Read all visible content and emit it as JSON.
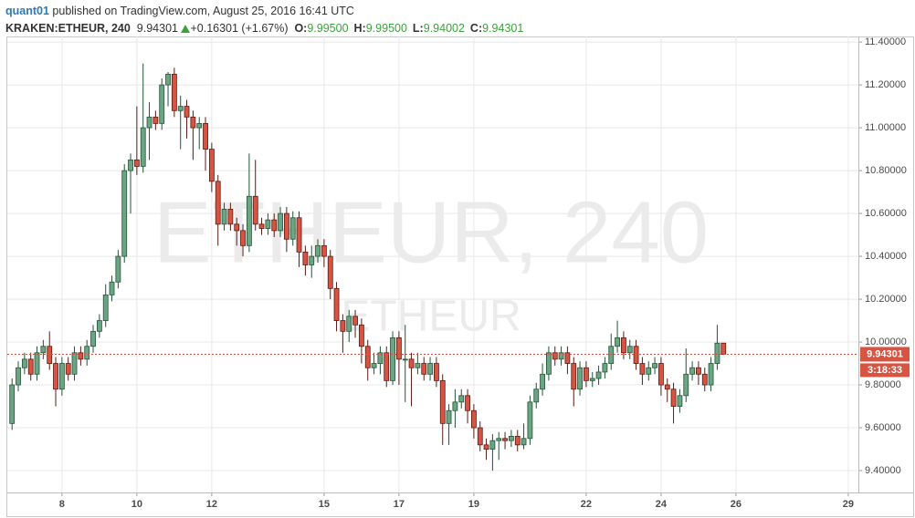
{
  "header": {
    "author": "quant01",
    "published": "published on TradingView.com, August 25, 2016 16:41 UTC",
    "symbol": "KRAKEN:ETHEUR, 240",
    "last": "9.94301",
    "change": "+0.16301 (+1.67%)",
    "ohlc": [
      {
        "label": "O:",
        "value": "9.99500"
      },
      {
        "label": "H:",
        "value": "9.99500"
      },
      {
        "label": "L:",
        "value": "9.94002"
      },
      {
        "label": "C:",
        "value": "9.94301"
      }
    ]
  },
  "chart_data": {
    "type": "candlestick",
    "watermark": "ETHEUR, 240",
    "watermark_sub": "ETHEUR",
    "countdown": "3:18:33",
    "up_color": "#6ba583",
    "up_edge": "#225437",
    "down_color": "#d75442",
    "down_edge": "#5b1a13",
    "price_line_color": "#d75442",
    "grid": true,
    "xlim": [
      6.54,
      29.27
    ],
    "xticks": [
      8,
      10,
      12,
      15,
      17,
      19,
      22,
      24,
      26,
      29
    ],
    "ylim": [
      9.298,
      11.426
    ],
    "yticks": [
      {
        "value": 9.4,
        "label": "9.40000"
      },
      {
        "value": 9.6,
        "label": "9.60000"
      },
      {
        "value": 9.8,
        "label": "9.80000"
      },
      {
        "value": 10.0,
        "label": "10.00000"
      },
      {
        "value": 10.2,
        "label": "10.20000"
      },
      {
        "value": 10.4,
        "label": "10.40000"
      },
      {
        "value": 10.6,
        "label": "10.60000"
      },
      {
        "value": 10.8,
        "label": "10.80000"
      },
      {
        "value": 11.0,
        "label": "11.00000"
      },
      {
        "value": 11.2,
        "label": "11.20000"
      },
      {
        "value": 11.4,
        "label": "11.40000"
      }
    ],
    "x": [
      6.667,
      6.833,
      7,
      7.167,
      7.333,
      7.5,
      7.667,
      7.833,
      8,
      8.167,
      8.333,
      8.5,
      8.667,
      8.833,
      9,
      9.167,
      9.333,
      9.5,
      9.667,
      9.833,
      10,
      10.167,
      10.333,
      10.5,
      10.667,
      10.833,
      11,
      11.167,
      11.333,
      11.5,
      11.667,
      11.833,
      12,
      12.167,
      12.333,
      12.5,
      12.667,
      12.833,
      13,
      13.167,
      13.333,
      13.5,
      13.667,
      13.833,
      14,
      14.167,
      14.333,
      14.5,
      14.667,
      14.833,
      15,
      15.167,
      15.333,
      15.5,
      15.667,
      15.833,
      16,
      16.167,
      16.333,
      16.5,
      16.667,
      16.833,
      17,
      17.167,
      17.333,
      17.5,
      17.667,
      17.833,
      18,
      18.167,
      18.333,
      18.5,
      18.667,
      18.833,
      19,
      19.167,
      19.333,
      19.5,
      19.667,
      19.833,
      20,
      20.167,
      20.333,
      20.5,
      20.667,
      20.833,
      21,
      21.167,
      21.333,
      21.5,
      21.667,
      21.833,
      22,
      22.167,
      22.333,
      22.5,
      22.667,
      22.833,
      23,
      23.167,
      23.333,
      23.5,
      23.667,
      23.833,
      24,
      24.167,
      24.333,
      24.5,
      24.667,
      24.833,
      25,
      25.167,
      25.333,
      25.5,
      25.667
    ],
    "open": [
      9.62,
      9.8,
      9.88,
      9.92,
      9.85,
      9.95,
      9.98,
      9.9,
      9.78,
      9.9,
      9.85,
      9.95,
      9.92,
      9.98,
      10.05,
      10.1,
      10.22,
      10.28,
      10.4,
      10.8,
      10.85,
      10.82,
      11.0,
      11.05,
      11.02,
      11.2,
      11.25,
      11.08,
      11.1,
      11.05,
      11.0,
      11.02,
      10.9,
      10.75,
      10.55,
      10.62,
      10.55,
      10.52,
      10.45,
      10.68,
      10.55,
      10.53,
      10.57,
      10.52,
      10.6,
      10.48,
      10.58,
      10.42,
      10.36,
      10.4,
      10.45,
      10.4,
      10.25,
      10.1,
      10.05,
      10.12,
      10.08,
      9.98,
      9.88,
      9.9,
      9.95,
      9.82,
      10.02,
      9.92,
      9.92,
      9.88,
      9.9,
      9.85,
      9.9,
      9.82,
      9.62,
      9.68,
      9.72,
      9.75,
      9.68,
      9.6,
      9.52,
      9.5,
      9.54,
      9.55,
      9.54,
      9.56,
      9.52,
      9.55,
      9.72,
      9.78,
      9.85,
      9.95,
      9.92,
      9.95,
      9.9,
      9.78,
      9.88,
      9.82,
      9.83,
      9.86,
      9.9,
      9.98,
      10.02,
      9.95,
      9.98,
      9.9,
      9.85,
      9.88,
      9.9,
      9.8,
      9.78,
      9.7,
      9.75,
      9.85,
      9.88,
      9.85,
      9.8,
      9.9,
      9.995
    ],
    "high": [
      9.83,
      9.91,
      9.95,
      9.95,
      9.98,
      10.01,
      10.05,
      9.93,
      9.93,
      9.93,
      9.98,
      9.98,
      10.01,
      10.08,
      10.13,
      10.27,
      10.31,
      10.43,
      10.83,
      10.88,
      11.1,
      11.3,
      11.12,
      11.08,
      11.23,
      11.26,
      11.28,
      11.15,
      11.13,
      11.08,
      11.05,
      11.05,
      10.93,
      10.78,
      10.65,
      10.65,
      10.58,
      10.55,
      10.88,
      10.85,
      10.58,
      10.6,
      10.6,
      10.63,
      10.63,
      10.61,
      10.61,
      10.45,
      10.45,
      10.48,
      10.48,
      10.43,
      10.28,
      10.13,
      10.15,
      10.15,
      10.11,
      10.01,
      9.95,
      9.98,
      9.98,
      10.05,
      10.05,
      10.08,
      9.95,
      9.95,
      9.93,
      9.93,
      9.93,
      9.85,
      9.71,
      9.78,
      9.78,
      9.78,
      9.71,
      9.63,
      9.55,
      9.57,
      9.58,
      9.58,
      9.59,
      9.59,
      9.62,
      9.75,
      9.81,
      9.9,
      9.98,
      9.98,
      9.98,
      9.98,
      9.93,
      9.91,
      9.91,
      9.86,
      9.89,
      9.93,
      10.04,
      10.1,
      10.05,
      10.01,
      10.01,
      9.93,
      9.91,
      9.93,
      9.93,
      9.83,
      9.81,
      9.78,
      9.97,
      9.91,
      9.91,
      9.88,
      9.93,
      10.08,
      9.995
    ],
    "low": [
      9.59,
      9.77,
      9.85,
      9.82,
      9.82,
      9.92,
      9.87,
      9.7,
      9.75,
      9.82,
      9.82,
      9.89,
      9.89,
      9.95,
      10.02,
      10.07,
      10.19,
      10.25,
      10.37,
      10.6,
      10.78,
      10.79,
      10.85,
      10.99,
      10.99,
      11.1,
      11.05,
      10.9,
      10.95,
      10.85,
      10.9,
      10.8,
      10.7,
      10.45,
      10.52,
      10.52,
      10.45,
      10.4,
      10.42,
      10.52,
      10.5,
      10.5,
      10.49,
      10.49,
      10.42,
      10.45,
      10.35,
      10.31,
      10.3,
      10.37,
      10.35,
      10.2,
      10.05,
      9.95,
      10.0,
      10.02,
      9.9,
      9.82,
      9.85,
      9.85,
      9.79,
      9.8,
      9.8,
      9.72,
      9.7,
      9.85,
      9.82,
      9.82,
      9.79,
      9.52,
      9.52,
      9.6,
      9.69,
      9.62,
      9.55,
      9.49,
      9.45,
      9.4,
      9.45,
      9.5,
      9.51,
      9.49,
      9.5,
      9.52,
      9.69,
      9.75,
      9.82,
      9.89,
      9.89,
      9.85,
      9.7,
      9.75,
      9.79,
      9.79,
      9.8,
      9.83,
      9.87,
      9.95,
      9.92,
      9.92,
      9.87,
      9.8,
      9.82,
      9.85,
      9.75,
      9.72,
      9.62,
      9.67,
      9.72,
      9.82,
      9.8,
      9.77,
      9.77,
      9.87,
      9.94002
    ],
    "close": [
      9.8,
      9.88,
      9.92,
      9.85,
      9.95,
      9.98,
      9.9,
      9.78,
      9.9,
      9.85,
      9.95,
      9.92,
      9.98,
      10.05,
      10.1,
      10.22,
      10.28,
      10.4,
      10.8,
      10.85,
      10.82,
      11.0,
      11.05,
      11.02,
      11.2,
      11.25,
      11.08,
      11.1,
      11.05,
      11.0,
      11.02,
      10.9,
      10.75,
      10.55,
      10.62,
      10.55,
      10.52,
      10.45,
      10.68,
      10.55,
      10.53,
      10.57,
      10.52,
      10.6,
      10.48,
      10.58,
      10.42,
      10.36,
      10.4,
      10.45,
      10.4,
      10.25,
      10.1,
      10.05,
      10.12,
      10.08,
      9.98,
      9.88,
      9.9,
      9.95,
      9.82,
      10.02,
      9.92,
      9.92,
      9.88,
      9.9,
      9.85,
      9.9,
      9.82,
      9.62,
      9.68,
      9.72,
      9.75,
      9.68,
      9.6,
      9.52,
      9.5,
      9.54,
      9.55,
      9.54,
      9.56,
      9.52,
      9.55,
      9.72,
      9.78,
      9.85,
      9.95,
      9.92,
      9.95,
      9.9,
      9.78,
      9.88,
      9.82,
      9.83,
      9.86,
      9.9,
      9.98,
      10.02,
      9.95,
      9.98,
      9.9,
      9.85,
      9.88,
      9.9,
      9.8,
      9.78,
      9.7,
      9.75,
      9.85,
      9.88,
      9.85,
      9.8,
      9.9,
      9.995,
      9.94301
    ]
  }
}
